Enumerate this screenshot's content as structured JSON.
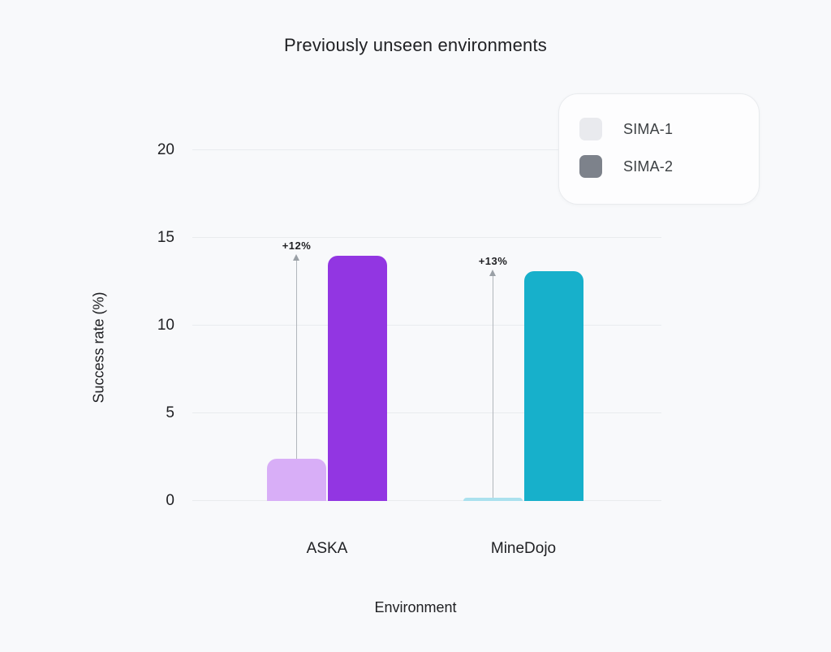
{
  "colors": {
    "background": "#f8f9fb",
    "text_primary": "#202124",
    "gridline": "#e9ebee",
    "arrow": "#9aa0a6",
    "legend_background": "#fdfdfe",
    "legend_border": "#e9ebee"
  },
  "legend": {
    "items": [
      {
        "label": "SIMA-1",
        "swatch": "#e9eaee"
      },
      {
        "label": "SIMA-2",
        "swatch": "#7d828b"
      }
    ]
  },
  "chart_data": {
    "type": "bar",
    "title": "Previously unseen environments",
    "xlabel": "Environment",
    "ylabel": "Success rate (%)",
    "ylim": [
      0,
      20
    ],
    "yticks": [
      0,
      5,
      10,
      15,
      20
    ],
    "grid": true,
    "legend_position": "top-right",
    "categories": [
      "ASKA",
      "MineDojo"
    ],
    "series": [
      {
        "name": "SIMA-1",
        "values": [
          2.4,
          0.2
        ],
        "colors": [
          "#d8aef7",
          "#abe1ee"
        ]
      },
      {
        "name": "SIMA-2",
        "values": [
          14.0,
          13.1
        ],
        "colors": [
          "#9236e2",
          "#17b0cb"
        ]
      }
    ],
    "annotations": [
      {
        "category": "ASKA",
        "label": "+12%"
      },
      {
        "category": "MineDojo",
        "label": "+13%"
      }
    ]
  }
}
